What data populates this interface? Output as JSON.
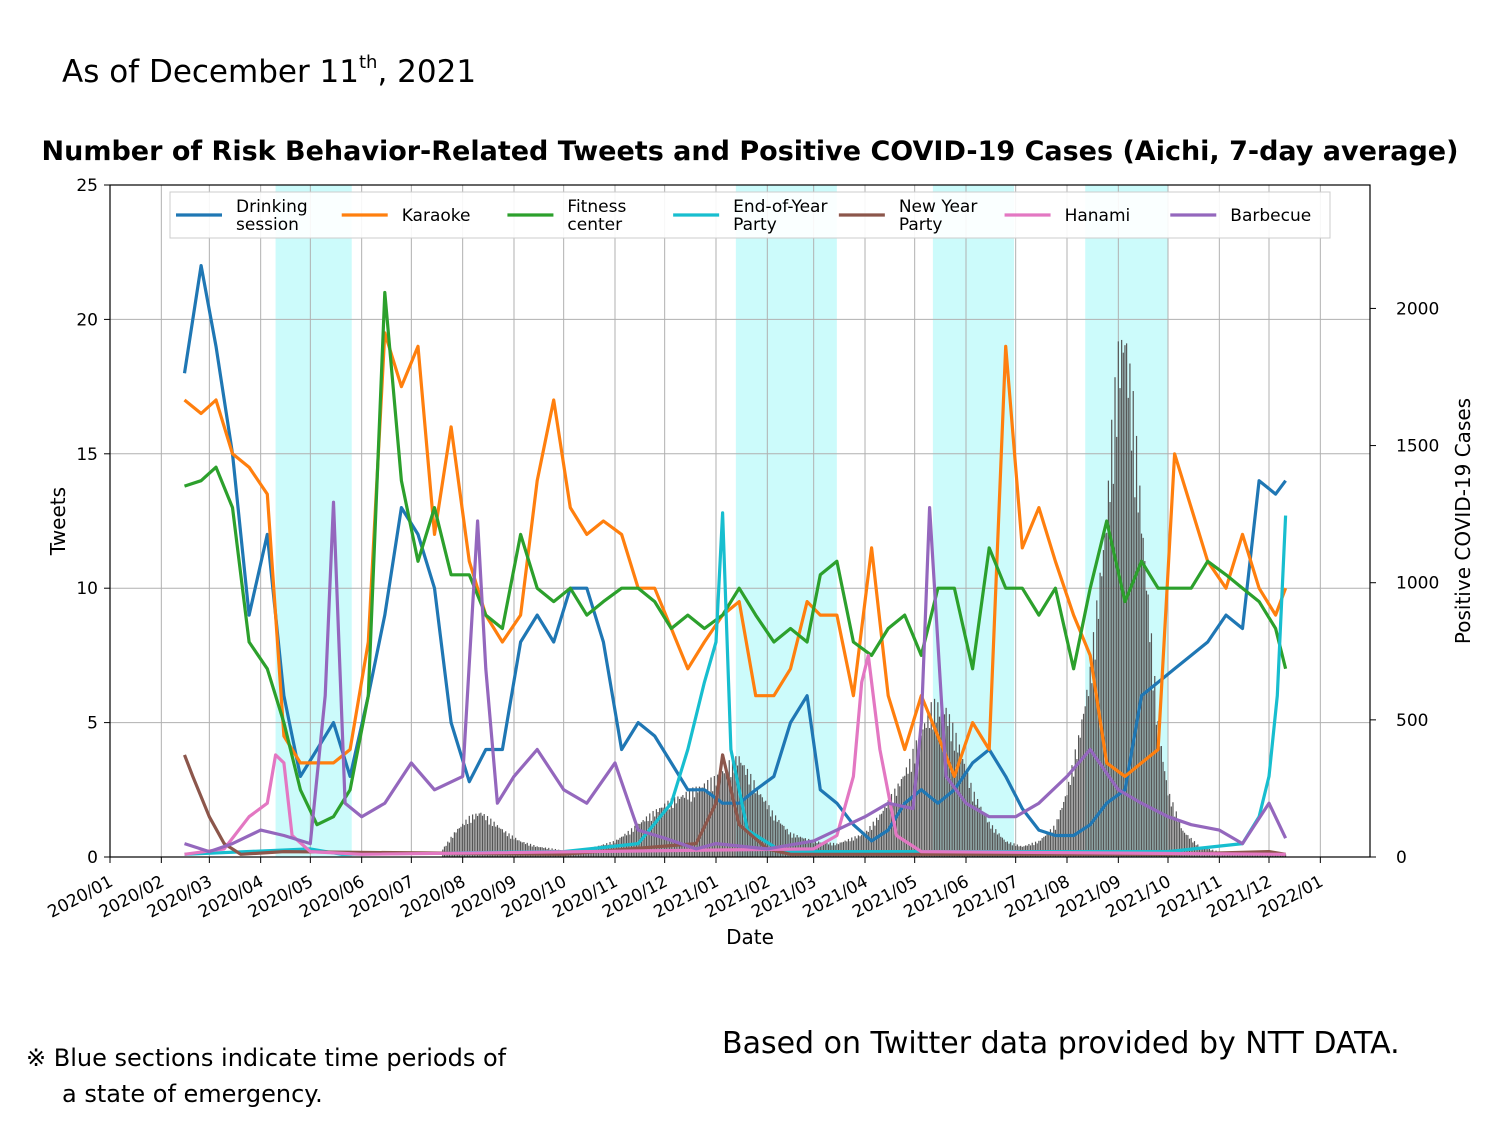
{
  "header": {
    "as_of_prefix": "As of December 11",
    "as_of_sup": "th",
    "as_of_suffix": ", 2021"
  },
  "footer": {
    "note_line1": "※ Blue sections indicate time periods of",
    "note_line2": "a state of emergency.",
    "source": "Based on Twitter data provided by NTT DATA."
  },
  "chart_data": {
    "type": "line",
    "title": "Number of Risk Behavior-Related Tweets and Positive COVID-19 Cases (Aichi, 7-day average)",
    "xlabel": "Date",
    "ylabel": "Tweets",
    "y2label": "Positive COVID-19 Cases",
    "ylim": [
      0,
      25
    ],
    "y2lim": [
      0,
      2450
    ],
    "xlim": [
      "2020-01-01",
      "2022-01-31"
    ],
    "grid": true,
    "legend_position": "top",
    "x_ticks": [
      "2020/01",
      "2020/02",
      "2020/03",
      "2020/04",
      "2020/05",
      "2020/06",
      "2020/07",
      "2020/08",
      "2020/09",
      "2020/10",
      "2020/11",
      "2020/12",
      "2021/01",
      "2021/02",
      "2021/03",
      "2021/04",
      "2021/05",
      "2021/06",
      "2021/07",
      "2021/08",
      "2021/09",
      "2021/10",
      "2021/11",
      "2021/12",
      "2022/01"
    ],
    "y_ticks": [
      0,
      5,
      10,
      15,
      20,
      25
    ],
    "y2_ticks": [
      0,
      500,
      1000,
      1500,
      2000
    ],
    "emergency_periods": [
      [
        "2020-04-10",
        "2020-05-26"
      ],
      [
        "2021-01-13",
        "2021-03-15"
      ],
      [
        "2021-05-12",
        "2021-06-30"
      ],
      [
        "2021-08-12",
        "2021-10-01"
      ]
    ],
    "series": [
      {
        "name": "Drinking\nsession",
        "color": "#1f77b4",
        "x": [
          "2020-02-15",
          "2020-02-25",
          "2020-03-05",
          "2020-03-15",
          "2020-03-25",
          "2020-04-05",
          "2020-04-15",
          "2020-04-25",
          "2020-05-05",
          "2020-05-15",
          "2020-05-25",
          "2020-06-05",
          "2020-06-15",
          "2020-06-25",
          "2020-07-05",
          "2020-07-15",
          "2020-07-25",
          "2020-08-05",
          "2020-08-15",
          "2020-08-25",
          "2020-09-05",
          "2020-09-15",
          "2020-09-25",
          "2020-10-05",
          "2020-10-15",
          "2020-10-25",
          "2020-11-05",
          "2020-11-15",
          "2020-11-25",
          "2020-12-05",
          "2020-12-15",
          "2020-12-25",
          "2021-01-05",
          "2021-01-15",
          "2021-01-25",
          "2021-02-05",
          "2021-02-15",
          "2021-02-25",
          "2021-03-05",
          "2021-03-15",
          "2021-03-25",
          "2021-04-05",
          "2021-04-15",
          "2021-04-25",
          "2021-05-05",
          "2021-05-15",
          "2021-05-25",
          "2021-06-05",
          "2021-06-15",
          "2021-06-25",
          "2021-07-05",
          "2021-07-15",
          "2021-07-25",
          "2021-08-05",
          "2021-08-15",
          "2021-08-25",
          "2021-09-05",
          "2021-09-15",
          "2021-09-25",
          "2021-10-05",
          "2021-10-15",
          "2021-10-25",
          "2021-11-05",
          "2021-11-15",
          "2021-11-25",
          "2021-12-05",
          "2021-12-11"
        ],
        "values": [
          18,
          22,
          19,
          15,
          9,
          12,
          6,
          3,
          4,
          5,
          3,
          6,
          9,
          13,
          12,
          10,
          5,
          2.8,
          4,
          4,
          8,
          9,
          8,
          10,
          10,
          8,
          4,
          5,
          4.5,
          3.5,
          2.5,
          2.5,
          2,
          2,
          2.5,
          3,
          5,
          6,
          2.5,
          2,
          1.2,
          0.6,
          1,
          2,
          2.5,
          2,
          2.5,
          3.5,
          4,
          3,
          1.8,
          1,
          0.8,
          0.8,
          1.2,
          2,
          2.5,
          6,
          6.5,
          7,
          7.5,
          8,
          9,
          8.5,
          14,
          13.5,
          14
        ]
      },
      {
        "name": "Karaoke",
        "color": "#ff7f0e",
        "x": [
          "2020-02-15",
          "2020-02-25",
          "2020-03-05",
          "2020-03-15",
          "2020-03-25",
          "2020-04-05",
          "2020-04-15",
          "2020-04-25",
          "2020-05-05",
          "2020-05-15",
          "2020-05-25",
          "2020-06-05",
          "2020-06-15",
          "2020-06-25",
          "2020-07-05",
          "2020-07-15",
          "2020-07-25",
          "2020-08-05",
          "2020-08-15",
          "2020-08-25",
          "2020-09-05",
          "2020-09-15",
          "2020-09-25",
          "2020-10-05",
          "2020-10-15",
          "2020-10-25",
          "2020-11-05",
          "2020-11-15",
          "2020-11-25",
          "2020-12-05",
          "2020-12-15",
          "2020-12-25",
          "2021-01-05",
          "2021-01-15",
          "2021-01-25",
          "2021-02-05",
          "2021-02-15",
          "2021-02-25",
          "2021-03-05",
          "2021-03-15",
          "2021-03-25",
          "2021-04-05",
          "2021-04-15",
          "2021-04-25",
          "2021-05-05",
          "2021-05-15",
          "2021-05-25",
          "2021-06-05",
          "2021-06-15",
          "2021-06-25",
          "2021-07-05",
          "2021-07-15",
          "2021-07-25",
          "2021-08-05",
          "2021-08-15",
          "2021-08-25",
          "2021-09-05",
          "2021-09-15",
          "2021-09-25",
          "2021-10-05",
          "2021-10-15",
          "2021-10-25",
          "2021-11-05",
          "2021-11-15",
          "2021-11-25",
          "2021-12-05",
          "2021-12-11"
        ],
        "values": [
          17,
          16.5,
          17,
          15,
          14.5,
          13.5,
          4.5,
          3.5,
          3.5,
          3.5,
          4,
          8,
          19.5,
          17.5,
          19,
          12,
          16,
          11,
          9,
          8,
          9,
          14,
          17,
          13,
          12,
          12.5,
          12,
          10,
          10,
          8.5,
          7,
          8,
          9,
          9.5,
          6,
          6,
          7,
          9.5,
          9,
          9,
          6,
          11.5,
          6,
          4,
          6,
          4.5,
          3,
          5,
          4,
          19,
          11.5,
          13,
          11,
          9,
          7.5,
          3.5,
          3,
          3.5,
          4,
          15,
          13,
          11,
          10,
          12,
          10,
          9,
          10
        ]
      },
      {
        "name": "Fitness\ncenter",
        "color": "#2ca02c",
        "x": [
          "2020-02-15",
          "2020-02-25",
          "2020-03-05",
          "2020-03-15",
          "2020-03-25",
          "2020-04-05",
          "2020-04-15",
          "2020-04-25",
          "2020-05-05",
          "2020-05-15",
          "2020-05-25",
          "2020-06-05",
          "2020-06-15",
          "2020-06-25",
          "2020-07-05",
          "2020-07-15",
          "2020-07-25",
          "2020-08-05",
          "2020-08-15",
          "2020-08-25",
          "2020-09-05",
          "2020-09-15",
          "2020-09-25",
          "2020-10-05",
          "2020-10-15",
          "2020-10-25",
          "2020-11-05",
          "2020-11-15",
          "2020-11-25",
          "2020-12-05",
          "2020-12-15",
          "2020-12-25",
          "2021-01-05",
          "2021-01-15",
          "2021-01-25",
          "2021-02-05",
          "2021-02-15",
          "2021-02-25",
          "2021-03-05",
          "2021-03-15",
          "2021-03-25",
          "2021-04-05",
          "2021-04-15",
          "2021-04-25",
          "2021-05-05",
          "2021-05-15",
          "2021-05-25",
          "2021-06-05",
          "2021-06-15",
          "2021-06-25",
          "2021-07-05",
          "2021-07-15",
          "2021-07-25",
          "2021-08-05",
          "2021-08-15",
          "2021-08-25",
          "2021-09-05",
          "2021-09-15",
          "2021-09-25",
          "2021-10-05",
          "2021-10-15",
          "2021-10-25",
          "2021-11-05",
          "2021-11-15",
          "2021-11-25",
          "2021-12-05",
          "2021-12-11"
        ],
        "values": [
          13.8,
          14,
          14.5,
          13,
          8,
          7,
          5,
          2.5,
          1.2,
          1.5,
          2.5,
          6,
          21,
          14,
          11,
          13,
          10.5,
          10.5,
          9,
          8.5,
          12,
          10,
          9.5,
          10,
          9,
          9.5,
          10,
          10,
          9.5,
          8.5,
          9,
          8.5,
          9,
          10,
          9,
          8,
          8.5,
          8,
          10.5,
          11,
          8,
          7.5,
          8.5,
          9,
          7.5,
          10,
          10,
          7,
          11.5,
          10,
          10,
          9,
          10,
          7,
          10,
          12.5,
          9.5,
          11,
          10,
          10,
          10,
          11,
          10.5,
          10,
          9.5,
          8.5,
          7
        ]
      },
      {
        "name": "End-of-Year\nParty",
        "color": "#17becf",
        "x": [
          "2020-02-15",
          "2020-05-01",
          "2020-05-20",
          "2020-10-01",
          "2020-11-15",
          "2020-12-05",
          "2020-12-15",
          "2020-12-25",
          "2021-01-01",
          "2021-01-05",
          "2021-01-10",
          "2021-01-20",
          "2021-02-10",
          "2021-10-01",
          "2021-11-15",
          "2021-11-25",
          "2021-12-01",
          "2021-12-06",
          "2021-12-11"
        ],
        "values": [
          0.1,
          0.3,
          0.1,
          0.2,
          0.5,
          2,
          4,
          6.5,
          8,
          12.8,
          4,
          1,
          0.2,
          0.2,
          0.5,
          1.5,
          3,
          6,
          12.7
        ]
      },
      {
        "name": "New Year\nParty",
        "color": "#8c564b",
        "x": [
          "2020-02-15",
          "2020-02-20",
          "2020-03-01",
          "2020-03-10",
          "2020-03-20",
          "2020-04-15",
          "2020-10-01",
          "2020-12-20",
          "2021-01-01",
          "2021-01-05",
          "2021-01-15",
          "2021-02-01",
          "2021-02-15",
          "2021-10-01",
          "2021-12-01",
          "2021-12-11"
        ],
        "values": [
          3.8,
          3,
          1.5,
          0.5,
          0.1,
          0.2,
          0.1,
          0.5,
          2,
          3.8,
          1.2,
          0.3,
          0.1,
          0.1,
          0.2,
          0.1
        ]
      },
      {
        "name": "Hanami",
        "color": "#e377c2",
        "x": [
          "2020-02-15",
          "2020-03-10",
          "2020-03-25",
          "2020-04-05",
          "2020-04-10",
          "2020-04-15",
          "2020-04-20",
          "2020-05-01",
          "2020-06-01",
          "2021-03-01",
          "2021-03-15",
          "2021-03-25",
          "2021-03-30",
          "2021-04-03",
          "2021-04-10",
          "2021-04-20",
          "2021-05-05",
          "2021-12-11"
        ],
        "values": [
          0.1,
          0.3,
          1.5,
          2,
          3.8,
          3.5,
          0.8,
          0.2,
          0.1,
          0.3,
          0.8,
          3,
          6.5,
          7.5,
          4,
          0.8,
          0.2,
          0.1
        ]
      },
      {
        "name": "Barbecue",
        "color": "#9467bd",
        "x": [
          "2020-02-15",
          "2020-03-01",
          "2020-03-15",
          "2020-04-01",
          "2020-04-15",
          "2020-05-01",
          "2020-05-10",
          "2020-05-15",
          "2020-05-22",
          "2020-06-01",
          "2020-06-15",
          "2020-07-01",
          "2020-07-15",
          "2020-08-01",
          "2020-08-10",
          "2020-08-15",
          "2020-08-22",
          "2020-09-01",
          "2020-09-15",
          "2020-10-01",
          "2020-10-15",
          "2020-11-01",
          "2020-11-15",
          "2020-12-01",
          "2020-12-20",
          "2021-01-01",
          "2021-02-01",
          "2021-03-01",
          "2021-04-01",
          "2021-04-15",
          "2021-04-30",
          "2021-05-05",
          "2021-05-10",
          "2021-05-20",
          "2021-06-01",
          "2021-06-15",
          "2021-07-01",
          "2021-07-15",
          "2021-08-01",
          "2021-08-15",
          "2021-09-01",
          "2021-09-15",
          "2021-10-01",
          "2021-10-15",
          "2021-11-01",
          "2021-11-15",
          "2021-12-01",
          "2021-12-11"
        ],
        "values": [
          0.5,
          0.2,
          0.5,
          1,
          0.8,
          0.5,
          6,
          13.2,
          2,
          1.5,
          2,
          3.5,
          2.5,
          3,
          12.5,
          7,
          2,
          3,
          4,
          2.5,
          2,
          3.5,
          1,
          0.7,
          0.3,
          0.5,
          0.3,
          0.6,
          1.5,
          2,
          1.8,
          5,
          13,
          3,
          2,
          1.5,
          1.5,
          2,
          3,
          4,
          2.5,
          2,
          1.5,
          1.2,
          1,
          0.5,
          2,
          0.7
        ]
      }
    ],
    "bar_series": {
      "name": "Positive COVID-19 Cases",
      "color": "#555555",
      "axis": "y2",
      "x": [
        "2020-07-20",
        "2020-07-28",
        "2020-08-05",
        "2020-08-12",
        "2020-08-20",
        "2020-08-28",
        "2020-09-05",
        "2020-09-15",
        "2020-10-01",
        "2020-10-15",
        "2020-11-01",
        "2020-11-10",
        "2020-11-20",
        "2020-12-01",
        "2020-12-10",
        "2020-12-20",
        "2021-01-01",
        "2021-01-08",
        "2021-01-15",
        "2021-01-25",
        "2021-02-05",
        "2021-02-15",
        "2021-03-01",
        "2021-03-15",
        "2021-04-01",
        "2021-04-10",
        "2021-04-20",
        "2021-04-28",
        "2021-05-05",
        "2021-05-12",
        "2021-05-20",
        "2021-05-28",
        "2021-06-05",
        "2021-06-15",
        "2021-06-25",
        "2021-07-05",
        "2021-07-15",
        "2021-07-25",
        "2021-08-01",
        "2021-08-08",
        "2021-08-15",
        "2021-08-20",
        "2021-08-25",
        "2021-08-28",
        "2021-09-01",
        "2021-09-05",
        "2021-09-10",
        "2021-09-15",
        "2021-09-20",
        "2021-09-25",
        "2021-10-01",
        "2021-10-10",
        "2021-10-20",
        "2021-11-01",
        "2021-12-11"
      ],
      "values": [
        30,
        100,
        150,
        170,
        130,
        90,
        60,
        40,
        25,
        30,
        60,
        100,
        150,
        200,
        230,
        260,
        300,
        350,
        380,
        270,
        160,
        90,
        60,
        50,
        90,
        160,
        260,
        360,
        480,
        580,
        560,
        420,
        250,
        130,
        60,
        40,
        60,
        120,
        250,
        450,
        700,
        1000,
        1300,
        1600,
        1900,
        2000,
        1700,
        1300,
        900,
        500,
        250,
        100,
        40,
        20,
        10
      ]
    }
  }
}
